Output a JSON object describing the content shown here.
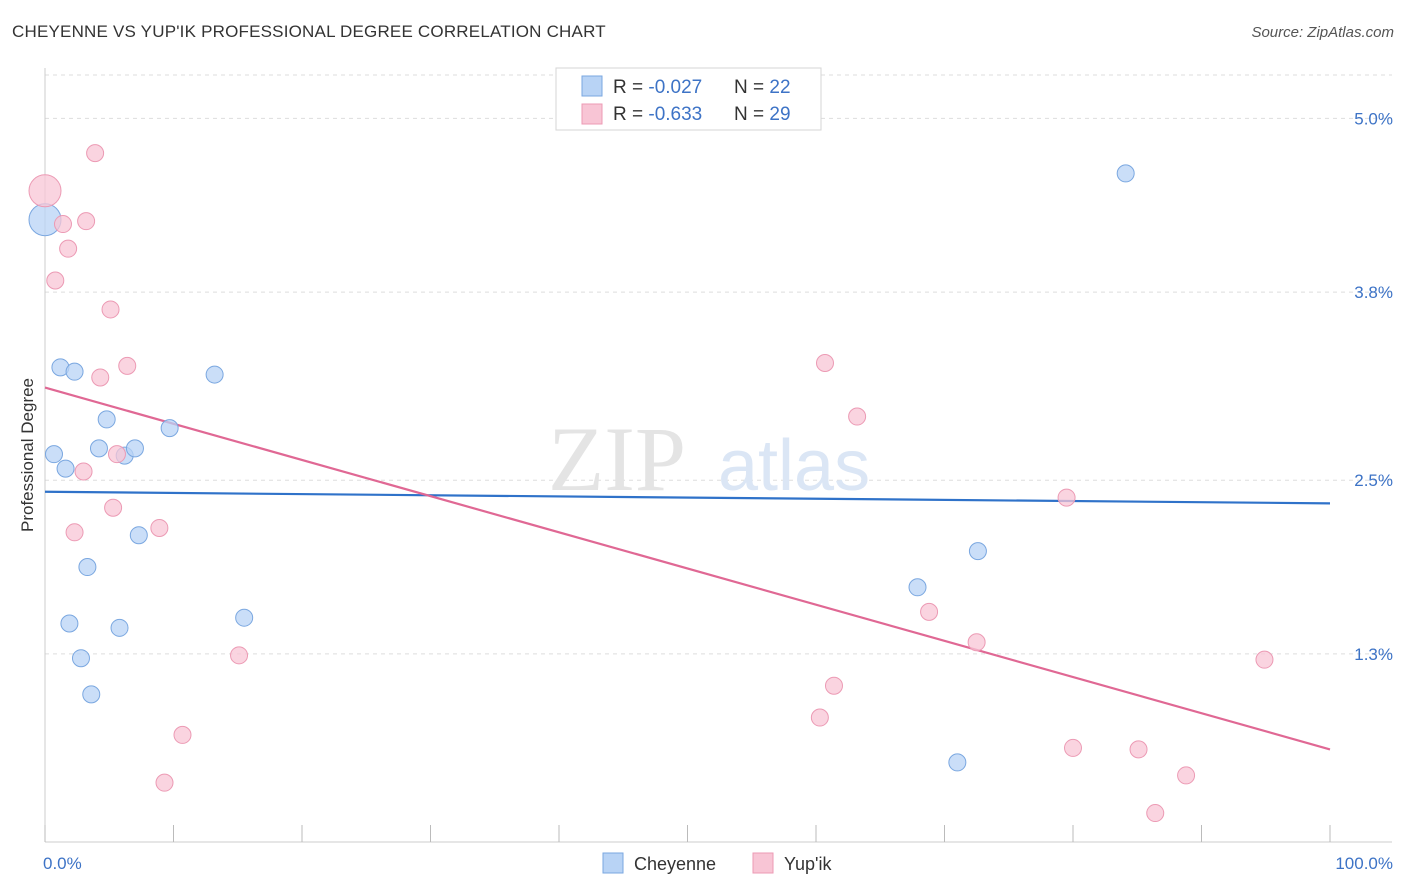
{
  "title": "CHEYENNE VS YUP'IK PROFESSIONAL DEGREE CORRELATION CHART",
  "source": "Source: ZipAtlas.com",
  "watermark": {
    "zip": "ZIP",
    "atlas": "atlas"
  },
  "colors": {
    "cheyenne_fill": "#b8d3f5",
    "cheyenne_stroke": "#7aa7e0",
    "cheyenne_line": "#2f72c9",
    "yupik_fill": "#f8c5d5",
    "yupik_stroke": "#ec9ab4",
    "yupik_line": "#e06894",
    "axis_label": "#3d73c6",
    "grid": "#dddddd"
  },
  "legend": {
    "rows": [
      {
        "r_label": "R = ",
        "r_value": "-0.027",
        "n_label": "N = ",
        "n_value": "22"
      },
      {
        "r_label": "R = ",
        "r_value": "-0.633",
        "n_label": "N = ",
        "n_value": "29"
      }
    ]
  },
  "chart_data": {
    "type": "scatter",
    "title": "CHEYENNE VS YUP'IK PROFESSIONAL DEGREE CORRELATION CHART",
    "xlabel": "",
    "ylabel": "Professional Degree",
    "xlim": [
      0,
      100
    ],
    "ylim": [
      0,
      5.3
    ],
    "x_tick_labels": [
      "0.0%",
      "100.0%"
    ],
    "y_ticks": [
      1.3,
      2.5,
      3.8,
      5.0
    ],
    "y_tick_labels": [
      "1.3%",
      "2.5%",
      "3.8%",
      "5.0%"
    ],
    "grid": true,
    "legend_position": "top-center",
    "series": [
      {
        "name": "Cheyenne",
        "r": -0.027,
        "n": 22,
        "trend": {
          "x": [
            0,
            100
          ],
          "y": [
            2.42,
            2.34
          ]
        },
        "points": [
          {
            "x": 0.0,
            "y": 4.3,
            "size": "large"
          },
          {
            "x": 0.7,
            "y": 2.68
          },
          {
            "x": 1.2,
            "y": 3.28
          },
          {
            "x": 1.6,
            "y": 2.58
          },
          {
            "x": 1.9,
            "y": 1.51
          },
          {
            "x": 2.3,
            "y": 3.25
          },
          {
            "x": 2.8,
            "y": 1.27
          },
          {
            "x": 3.3,
            "y": 1.9
          },
          {
            "x": 3.6,
            "y": 1.02
          },
          {
            "x": 4.2,
            "y": 2.72
          },
          {
            "x": 4.8,
            "y": 2.92
          },
          {
            "x": 5.8,
            "y": 1.48
          },
          {
            "x": 6.2,
            "y": 2.67
          },
          {
            "x": 7.0,
            "y": 2.72
          },
          {
            "x": 7.3,
            "y": 2.12
          },
          {
            "x": 9.7,
            "y": 2.86
          },
          {
            "x": 13.2,
            "y": 3.23
          },
          {
            "x": 15.5,
            "y": 1.55
          },
          {
            "x": 67.9,
            "y": 1.76
          },
          {
            "x": 71.0,
            "y": 0.55
          },
          {
            "x": 72.6,
            "y": 2.01
          },
          {
            "x": 84.1,
            "y": 4.62
          }
        ]
      },
      {
        "name": "Yup'ik",
        "r": -0.633,
        "n": 29,
        "trend": {
          "x": [
            0,
            100
          ],
          "y": [
            3.14,
            0.64
          ]
        },
        "points": [
          {
            "x": 0.0,
            "y": 4.5,
            "size": "large"
          },
          {
            "x": 0.8,
            "y": 3.88
          },
          {
            "x": 1.4,
            "y": 4.27
          },
          {
            "x": 1.8,
            "y": 4.1
          },
          {
            "x": 2.3,
            "y": 2.14
          },
          {
            "x": 3.0,
            "y": 2.56
          },
          {
            "x": 3.2,
            "y": 4.29
          },
          {
            "x": 3.9,
            "y": 4.76
          },
          {
            "x": 4.3,
            "y": 3.21
          },
          {
            "x": 5.1,
            "y": 3.68
          },
          {
            "x": 5.3,
            "y": 2.31
          },
          {
            "x": 5.6,
            "y": 2.68
          },
          {
            "x": 6.4,
            "y": 3.29
          },
          {
            "x": 8.9,
            "y": 2.17
          },
          {
            "x": 9.3,
            "y": 0.41
          },
          {
            "x": 10.7,
            "y": 0.74
          },
          {
            "x": 15.1,
            "y": 1.29
          },
          {
            "x": 60.3,
            "y": 0.86
          },
          {
            "x": 60.7,
            "y": 3.31
          },
          {
            "x": 61.4,
            "y": 1.08
          },
          {
            "x": 63.2,
            "y": 2.94
          },
          {
            "x": 68.8,
            "y": 1.59
          },
          {
            "x": 72.5,
            "y": 1.38
          },
          {
            "x": 79.5,
            "y": 2.38
          },
          {
            "x": 80.0,
            "y": 0.65
          },
          {
            "x": 85.1,
            "y": 0.64
          },
          {
            "x": 86.4,
            "y": 0.2
          },
          {
            "x": 88.8,
            "y": 0.46
          },
          {
            "x": 94.9,
            "y": 1.26
          }
        ]
      }
    ]
  }
}
